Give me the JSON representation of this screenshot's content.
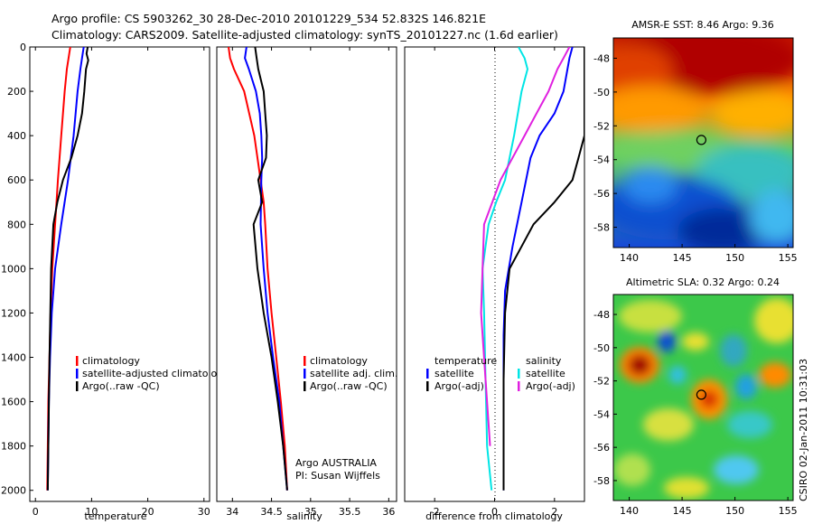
{
  "header": {
    "line1": "Argo profile: CS 5903262_30 28-Dec-2010 20101229_534 52.832S 146.821E",
    "line2": "Climatology: CARS2009. Satellite-adjusted climatology: synTS_20101227.nc (1.6d earlier)"
  },
  "footer": {
    "stamp": "CSIRO 02-Jan-2011 10:31:03"
  },
  "colors": {
    "climatology": "#ff0000",
    "satellite": "#0000ff",
    "argo": "#000000",
    "cyan": "#00e5e5",
    "magenta": "#e020e0"
  },
  "chart_data": [
    {
      "type": "line",
      "xlabel": "temperature",
      "xlim": [
        -1,
        31
      ],
      "ylim": [
        0,
        2050
      ],
      "xticks": [
        0,
        10,
        20,
        30
      ],
      "yticks": [
        0,
        200,
        400,
        600,
        800,
        1000,
        1200,
        1400,
        1600,
        1800,
        2000
      ],
      "legend": [
        "climatology",
        "satellite-adjusted climatology",
        "Argo(..raw -QC)"
      ],
      "series": [
        {
          "name": "climatology",
          "color": "#ff0000",
          "x": [
            6.2,
            5.9,
            5.6,
            5.2,
            4.6,
            4.0,
            3.5,
            3.0,
            2.7,
            2.5,
            2.3,
            2.2,
            2.1
          ],
          "y": [
            0,
            50,
            100,
            200,
            400,
            600,
            800,
            1000,
            1200,
            1400,
            1600,
            1800,
            2000
          ]
        },
        {
          "name": "satellite-adjusted climatology",
          "color": "#0000ff",
          "x": [
            8.6,
            8.3,
            8.0,
            7.5,
            6.8,
            5.8,
            4.6,
            3.5,
            2.9,
            2.6,
            2.4,
            2.3,
            2.2
          ],
          "y": [
            0,
            50,
            100,
            200,
            400,
            600,
            800,
            1000,
            1200,
            1400,
            1600,
            1800,
            2000
          ]
        },
        {
          "name": "Argo(..raw -QC)",
          "color": "#000000",
          "x": [
            9.3,
            9.1,
            9.4,
            9.0,
            8.7,
            8.3,
            7.5,
            6.4,
            4.9,
            3.9,
            3.2,
            2.8,
            2.5,
            2.3,
            2.2
          ],
          "y": [
            0,
            30,
            60,
            100,
            200,
            300,
            400,
            500,
            600,
            700,
            800,
            1000,
            1400,
            1800,
            2000
          ]
        }
      ]
    },
    {
      "type": "line",
      "xlabel": "salinity",
      "xlim": [
        33.8,
        36.1
      ],
      "ylim": [
        0,
        2050
      ],
      "xticks": [
        34,
        34.5,
        35,
        35.5,
        36
      ],
      "legend": [
        "climatology",
        "satellite adj. clim.",
        "Argo(..raw -QC)"
      ],
      "annotation": [
        "Argo AUSTRALIA",
        "PI: Susan Wijffels"
      ],
      "series": [
        {
          "name": "climatology",
          "color": "#ff0000",
          "x": [
            33.95,
            33.97,
            34.02,
            34.15,
            34.28,
            34.36,
            34.4,
            34.42,
            34.45,
            34.5,
            34.56,
            34.62,
            34.67,
            34.7
          ],
          "y": [
            0,
            50,
            100,
            200,
            400,
            600,
            700,
            800,
            1000,
            1200,
            1400,
            1600,
            1800,
            2000
          ]
        },
        {
          "name": "satellite adj. clim.",
          "color": "#0000ff",
          "x": [
            34.18,
            34.16,
            34.21,
            34.3,
            34.35,
            34.37,
            34.38,
            34.37,
            34.36,
            34.4,
            34.45,
            34.52,
            34.6,
            34.65,
            34.7
          ],
          "y": [
            0,
            50,
            100,
            200,
            300,
            400,
            500,
            600,
            800,
            1000,
            1200,
            1400,
            1600,
            1800,
            2000
          ]
        },
        {
          "name": "Argo(..raw -QC)",
          "color": "#000000",
          "x": [
            34.29,
            34.31,
            34.33,
            34.4,
            34.42,
            34.44,
            34.43,
            34.33,
            34.38,
            34.27,
            34.32,
            34.4,
            34.5,
            34.58,
            34.65,
            34.7
          ],
          "y": [
            0,
            50,
            100,
            200,
            300,
            400,
            500,
            600,
            700,
            800,
            1000,
            1200,
            1400,
            1600,
            1800,
            2000
          ]
        }
      ]
    },
    {
      "type": "line",
      "xlabel": "difference from climatology",
      "xlim": [
        -3,
        3
      ],
      "ylim": [
        0,
        2050
      ],
      "xticks": [
        -2,
        0,
        2
      ],
      "legend_temperature": [
        "temperature",
        "satellite",
        "Argo(-adj)"
      ],
      "legend_salinity": [
        "salinity",
        "satellite",
        "Argo(-adj)"
      ],
      "series": [
        {
          "name": "temperature satellite",
          "color": "#0000ff",
          "x": [
            2.6,
            2.5,
            2.3,
            2.0,
            1.5,
            1.2,
            0.9,
            0.6,
            0.35,
            0.3,
            0.3,
            0.3,
            0.3
          ],
          "y": [
            0,
            50,
            200,
            300,
            400,
            500,
            700,
            900,
            1100,
            1300,
            1500,
            1800,
            2000
          ]
        },
        {
          "name": "temperature Argo(-adj)",
          "color": "#000000",
          "x": [
            3.0,
            3.0,
            2.8,
            2.6,
            2.0,
            1.3,
            0.9,
            0.5,
            0.35,
            0.3,
            0.3,
            0.3
          ],
          "y": [
            0,
            400,
            500,
            600,
            700,
            800,
            900,
            1000,
            1200,
            1500,
            1800,
            2000
          ]
        },
        {
          "name": "salinity satellite",
          "color": "#00e5e5",
          "x": [
            0.8,
            1.0,
            1.1,
            0.9,
            0.65,
            0.35,
            0.05,
            -0.2,
            -0.3,
            -0.4,
            -0.35,
            -0.3,
            -0.25,
            -0.1
          ],
          "y": [
            0,
            50,
            100,
            200,
            400,
            600,
            700,
            800,
            900,
            1000,
            1200,
            1500,
            1800,
            2000
          ]
        },
        {
          "name": "salinity Argo(-adj)",
          "color": "#e020e0",
          "x": [
            2.5,
            2.3,
            2.1,
            1.8,
            1.4,
            1.0,
            0.6,
            0.2,
            -0.35,
            -0.4,
            -0.45,
            -0.3,
            -0.15
          ],
          "y": [
            0,
            50,
            100,
            200,
            300,
            400,
            500,
            600,
            800,
            1000,
            1200,
            1500,
            1800
          ]
        }
      ]
    }
  ],
  "maps": [
    {
      "title": "AMSR-E SST: 8.46 Argo: 9.36",
      "xticks": [
        140,
        145,
        150,
        155
      ],
      "yticks": [
        -48,
        -50,
        -52,
        -54,
        -56,
        -58
      ],
      "xlim": [
        138.5,
        155.5
      ],
      "ylim": [
        -59.2,
        -46.8
      ]
    },
    {
      "title": "Altimetric SLA: 0.32 Argo: 0.24",
      "xticks": [
        140,
        145,
        150,
        155
      ],
      "yticks": [
        -48,
        -50,
        -52,
        -54,
        -56,
        -58
      ],
      "xlim": [
        138.5,
        155.5
      ],
      "ylim": [
        -59.2,
        -46.8
      ]
    }
  ],
  "float_position": {
    "lon": 146.821,
    "lat": -52.832
  }
}
